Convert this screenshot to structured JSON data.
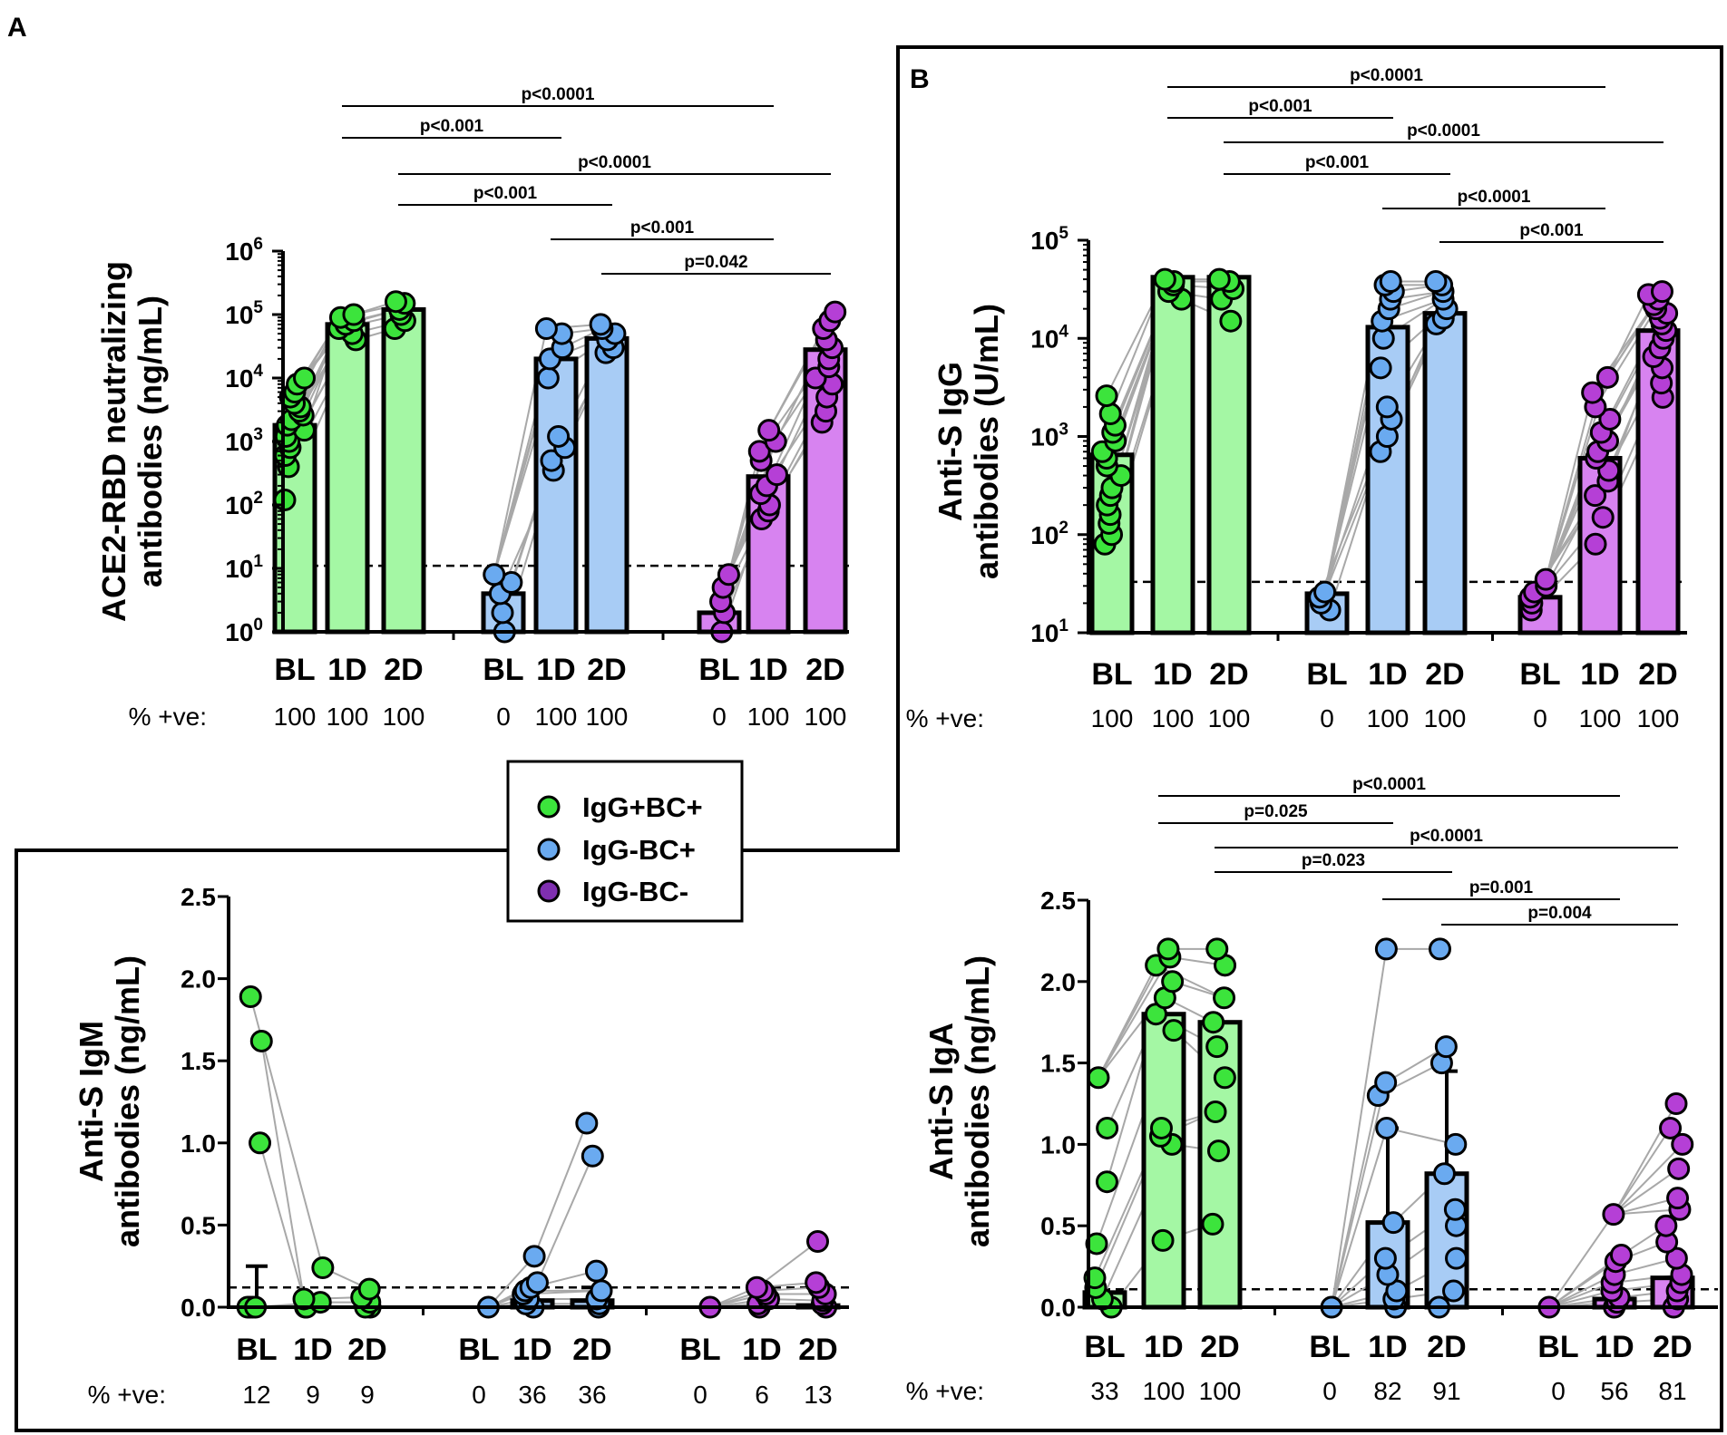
{
  "panel_labels": {
    "a": "A",
    "b": "B"
  },
  "colors": {
    "green": "#3ce43c",
    "green_bar": "#a4f7a4",
    "blue": "#6aaaf0",
    "blue_bar": "#a8ccf5",
    "purple": "#b53fd6",
    "purple_bar": "#d783f0",
    "legend_purple": "#7f2fb0",
    "line": "#a8a8a8"
  },
  "legend": [
    {
      "label": "IgG+BC+",
      "color": "#3ce43c"
    },
    {
      "label": "IgG-BC+",
      "color": "#6aaaf0"
    },
    {
      "label": "IgG-BC-",
      "color": "#7f2fb0"
    }
  ],
  "chart_data": [
    {
      "id": "ace2",
      "type": "bar",
      "scale": "log",
      "ylabel_lines": [
        "ACE2-RBD neutralizing",
        "antibodies (ng/mL)"
      ],
      "ylim": [
        1,
        1000000
      ],
      "yticks": [
        {
          "v": 1,
          "base": "10",
          "exp": "0"
        },
        {
          "v": 10,
          "base": "10",
          "exp": "1"
        },
        {
          "v": 100,
          "base": "10",
          "exp": "2"
        },
        {
          "v": 1000,
          "base": "10",
          "exp": "3"
        },
        {
          "v": 10000,
          "base": "10",
          "exp": "4"
        },
        {
          "v": 100000,
          "base": "10",
          "exp": "5"
        },
        {
          "v": 1000000,
          "base": "10",
          "exp": "6"
        }
      ],
      "cutoff": 11,
      "categories": [
        "BL",
        "1D",
        "2D",
        "BL",
        "1D",
        "2D",
        "BL",
        "1D",
        "2D"
      ],
      "pct_label": "% +ve:",
      "pct_positive": [
        "100",
        "100",
        "100",
        "0",
        "100",
        "100",
        "0",
        "100",
        "100"
      ],
      "bars": [
        1800,
        70000,
        120000,
        4,
        20000,
        42000,
        2,
        280,
        28000
      ],
      "errors": [
        null,
        null,
        null,
        null,
        null,
        null,
        null,
        null,
        null
      ],
      "points": [
        [
          120,
          400,
          600,
          800,
          1000,
          1200,
          1500,
          1800,
          2200,
          2600,
          3000,
          3500,
          4000,
          5000,
          6000,
          8000,
          10000
        ],
        [
          40000,
          50000,
          60000,
          70000,
          80000,
          90000,
          100000
        ],
        [
          60000,
          80000,
          100000,
          120000,
          150000,
          160000
        ],
        [
          1,
          2,
          4,
          6,
          8
        ],
        [
          350,
          500,
          800,
          1200,
          10000,
          20000,
          30000,
          50000,
          60000
        ],
        [
          25000,
          30000,
          40000,
          50000,
          60000,
          70000
        ],
        [
          1,
          2,
          3,
          5,
          8
        ],
        [
          60,
          80,
          100,
          150,
          200,
          300,
          500,
          700,
          1000,
          1500
        ],
        [
          2000,
          3000,
          5000,
          8000,
          10000,
          15000,
          20000,
          30000,
          40000,
          60000,
          80000,
          110000
        ]
      ],
      "pvalues": [
        {
          "from": 1,
          "to": 7,
          "label": "p<0.0001"
        },
        {
          "from": 1,
          "to": 4,
          "label": "p<0.001"
        },
        {
          "from": 2,
          "to": 8,
          "label": "p<0.0001"
        },
        {
          "from": 2,
          "to": 5,
          "label": "p<0.001"
        },
        {
          "from": 4,
          "to": 7,
          "label": "p<0.001"
        },
        {
          "from": 5,
          "to": 8,
          "label": "p=0.042"
        }
      ]
    },
    {
      "id": "igg",
      "type": "bar",
      "scale": "log",
      "ylabel_lines": [
        "Anti-S IgG",
        "antibodies (U/mL)"
      ],
      "ylim": [
        10,
        100000
      ],
      "yticks": [
        {
          "v": 10,
          "base": "10",
          "exp": "1"
        },
        {
          "v": 100,
          "base": "10",
          "exp": "2"
        },
        {
          "v": 1000,
          "base": "10",
          "exp": "3"
        },
        {
          "v": 10000,
          "base": "10",
          "exp": "4"
        },
        {
          "v": 100000,
          "base": "10",
          "exp": "5"
        }
      ],
      "cutoff": 33,
      "categories": [
        "BL",
        "1D",
        "2D",
        "BL",
        "1D",
        "2D",
        "BL",
        "1D",
        "2D"
      ],
      "pct_label": "% +ve:",
      "pct_positive": [
        "100",
        "100",
        "100",
        "0",
        "100",
        "100",
        "0",
        "100",
        "100"
      ],
      "bars": [
        650,
        42000,
        42000,
        25,
        13000,
        18000,
        23,
        600,
        12000
      ],
      "errors": [
        null,
        null,
        null,
        null,
        null,
        null,
        null,
        null,
        null
      ],
      "points": [
        [
          80,
          100,
          130,
          160,
          200,
          250,
          300,
          400,
          500,
          600,
          700,
          900,
          1100,
          1300,
          1700,
          2600
        ],
        [
          25000,
          30000,
          35000,
          38000,
          40000
        ],
        [
          15000,
          25000,
          32000,
          38000,
          40000
        ],
        [
          17,
          20,
          23,
          26
        ],
        [
          700,
          1000,
          1500,
          2000,
          5000,
          10000,
          15000,
          20000,
          25000,
          30000,
          35000,
          38000
        ],
        [
          14000,
          16000,
          20000,
          25000,
          30000,
          35000,
          38000
        ],
        [
          17,
          20,
          23,
          26,
          30,
          35
        ],
        [
          80,
          150,
          250,
          350,
          450,
          600,
          700,
          900,
          1100,
          1500,
          2000,
          2800,
          4000
        ],
        [
          2500,
          3500,
          5000,
          6500,
          8000,
          10000,
          12000,
          14000,
          16000,
          18000,
          20000,
          22000,
          25000,
          28000,
          30000
        ]
      ],
      "pvalues": [
        {
          "from": 1,
          "to": 7,
          "label": "p<0.0001"
        },
        {
          "from": 1,
          "to": 4,
          "label": "p<0.001"
        },
        {
          "from": 2,
          "to": 8,
          "label": "p<0.0001"
        },
        {
          "from": 2,
          "to": 5,
          "label": "p<0.001"
        },
        {
          "from": 4,
          "to": 7,
          "label": "p<0.0001"
        },
        {
          "from": 5,
          "to": 8,
          "label": "p<0.001"
        }
      ]
    },
    {
      "id": "igm",
      "type": "bar",
      "scale": "linear",
      "ylabel_lines": [
        "Anti-S IgM",
        "antibodies (ng/mL)"
      ],
      "ylim": [
        0,
        2.5
      ],
      "yticks": [
        {
          "v": 0,
          "label": "0.0"
        },
        {
          "v": 0.5,
          "label": "0.5"
        },
        {
          "v": 1.0,
          "label": "1.0"
        },
        {
          "v": 1.5,
          "label": "1.5"
        },
        {
          "v": 2.0,
          "label": "2.0"
        },
        {
          "v": 2.5,
          "label": "2.5"
        }
      ],
      "cutoff": 0.12,
      "categories": [
        "BL",
        "1D",
        "2D",
        "BL",
        "1D",
        "2D",
        "BL",
        "1D",
        "2D"
      ],
      "pct_label": "% +ve:",
      "pct_positive": [
        "12",
        "9",
        "9",
        "0",
        "36",
        "36",
        "0",
        "6",
        "13"
      ],
      "bars": [
        0.0,
        0.0,
        0.0,
        0.0,
        0.04,
        0.04,
        0.0,
        0.0,
        0.01
      ],
      "errors": [
        0.25,
        null,
        null,
        null,
        null,
        0.12,
        null,
        null,
        null
      ],
      "points": [
        [
          0,
          0,
          0,
          0,
          1.0,
          1.62,
          1.89
        ],
        [
          0,
          0,
          0.03,
          0.05,
          0.24
        ],
        [
          0,
          0,
          0.03,
          0.06,
          0.11
        ],
        [
          0
        ],
        [
          0,
          0.02,
          0.05,
          0.08,
          0.1,
          0.12,
          0.15,
          0.31
        ],
        [
          0,
          0.02,
          0.05,
          0.1,
          0.22,
          0.92,
          1.12
        ],
        [
          0
        ],
        [
          0,
          0.02,
          0.05,
          0.08,
          0.1,
          0.12
        ],
        [
          0,
          0.02,
          0.04,
          0.08,
          0.12,
          0.15,
          0.4
        ]
      ],
      "pvalues": []
    },
    {
      "id": "iga",
      "type": "bar",
      "scale": "linear",
      "ylabel_lines": [
        "Anti-S IgA",
        "antibodies (ng/mL)"
      ],
      "ylim": [
        0,
        2.5
      ],
      "yticks": [
        {
          "v": 0,
          "label": "0.0"
        },
        {
          "v": 0.5,
          "label": "0.5"
        },
        {
          "v": 1.0,
          "label": "1.0"
        },
        {
          "v": 1.5,
          "label": "1.5"
        },
        {
          "v": 2.0,
          "label": "2.0"
        },
        {
          "v": 2.5,
          "label": "2.5"
        }
      ],
      "cutoff": 0.11,
      "categories": [
        "BL",
        "1D",
        "2D",
        "BL",
        "1D",
        "2D",
        "BL",
        "1D",
        "2D"
      ],
      "pct_label": "% +ve:",
      "pct_positive": [
        "33",
        "100",
        "100",
        "0",
        "82",
        "91",
        "0",
        "56",
        "81"
      ],
      "bars": [
        0.09,
        1.8,
        1.75,
        0,
        0.52,
        0.82,
        0,
        0.05,
        0.18
      ],
      "errors": [
        null,
        null,
        null,
        null,
        1.1,
        1.45,
        null,
        null,
        null
      ],
      "points": [
        [
          0,
          0.05,
          0.12,
          0.18,
          0.39,
          0.77,
          1.1,
          1.41
        ],
        [
          0.41,
          1.0,
          1.05,
          1.1,
          1.7,
          1.8,
          1.9,
          2.0,
          2.1,
          2.15,
          2.2
        ],
        [
          0.51,
          0.96,
          1.2,
          1.41,
          1.6,
          1.75,
          1.9,
          2.1,
          2.2
        ],
        [
          0
        ],
        [
          0,
          0.05,
          0.1,
          0.2,
          0.3,
          0.52,
          1.1,
          1.3,
          1.38,
          2.2
        ],
        [
          0,
          0.1,
          0.3,
          0.5,
          0.6,
          0.82,
          1.0,
          1.5,
          1.6,
          2.2
        ],
        [
          0
        ],
        [
          0,
          0.03,
          0.06,
          0.1,
          0.15,
          0.2,
          0.28,
          0.32,
          0.57
        ],
        [
          0,
          0.05,
          0.1,
          0.15,
          0.2,
          0.3,
          0.4,
          0.5,
          0.6,
          0.67,
          0.85,
          1.0,
          1.1,
          1.25
        ]
      ],
      "pvalues": [
        {
          "from": 1,
          "to": 7,
          "label": "p<0.0001"
        },
        {
          "from": 1,
          "to": 4,
          "label": "p=0.025"
        },
        {
          "from": 2,
          "to": 8,
          "label": "p<0.0001"
        },
        {
          "from": 2,
          "to": 5,
          "label": "p=0.023"
        },
        {
          "from": 4,
          "to": 7,
          "label": "p=0.001"
        },
        {
          "from": 5,
          "to": 8,
          "label": "p=0.004"
        }
      ]
    }
  ]
}
